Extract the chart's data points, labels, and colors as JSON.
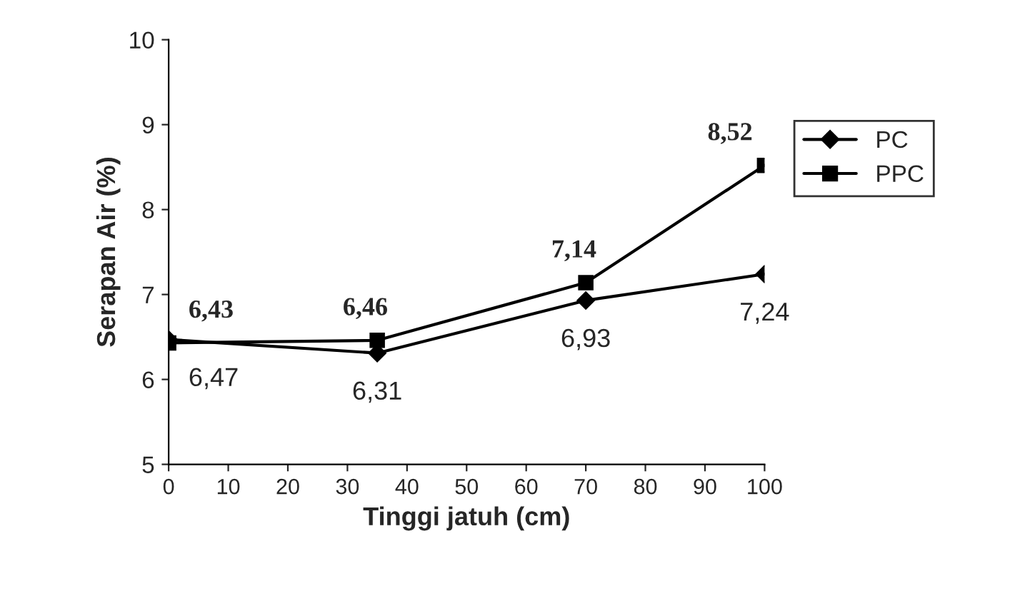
{
  "chart_data": {
    "type": "line",
    "xlabel": "Tinggi jatuh (cm)",
    "ylabel": "Serapan Air (%)",
    "x": [
      0,
      35,
      70,
      100
    ],
    "series": [
      {
        "name": "PC",
        "color": "#000000",
        "marker": "diamond",
        "values": [
          6.47,
          6.31,
          6.93,
          7.24
        ],
        "value_labels": [
          "6,47",
          "6,31",
          "6,93",
          "7,24"
        ]
      },
      {
        "name": "PPC",
        "color": "#000000",
        "marker": "square",
        "values": [
          6.43,
          6.46,
          7.14,
          8.52
        ],
        "value_labels": [
          "6,43",
          "6,46",
          "7,14",
          "8,52"
        ]
      }
    ],
    "xlim": [
      0,
      100
    ],
    "xticks": [
      0,
      10,
      20,
      30,
      40,
      50,
      60,
      70,
      80,
      90,
      100
    ],
    "ylim": [
      5,
      10
    ],
    "yticks": [
      5,
      6,
      7,
      8,
      9,
      10
    ],
    "grid": false,
    "legend": "right",
    "line_style": "solid"
  }
}
